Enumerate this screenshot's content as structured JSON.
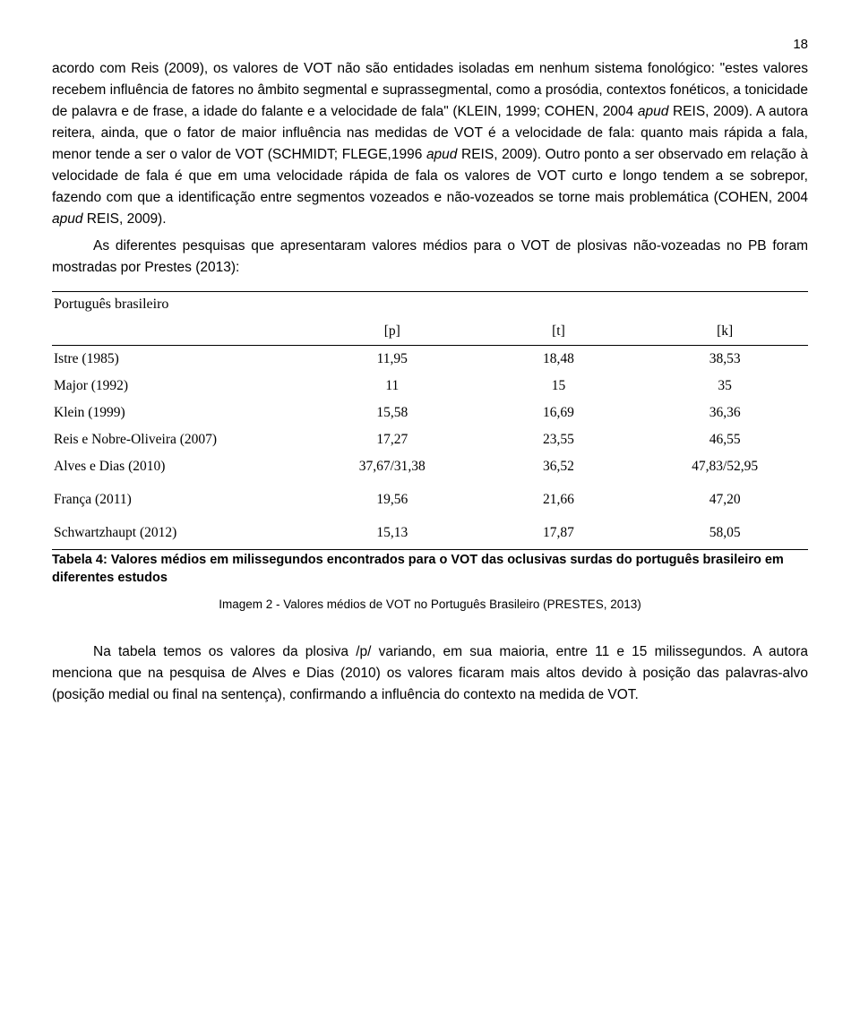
{
  "page_number": "18",
  "para1_a": "acordo com Reis (2009), os valores de VOT não são entidades isoladas em nenhum sistema fonológico: \"estes valores recebem influência de fatores no âmbito segmental e suprassegmental, como a prosódia, contextos fonéticos, a tonicidade de palavra e de frase, a idade do falante e a velocidade de fala\" (KLEIN, 1999; COHEN, 2004 ",
  "para1_apud1": "apud",
  "para1_b": " REIS, 2009). A autora reitera, ainda, que o fator de maior influência nas medidas de VOT é a velocidade de fala: quanto mais rápida a fala, menor tende a ser o valor de VOT (SCHMIDT; FLEGE,1996 ",
  "para1_apud2": "apud",
  "para1_c": " REIS, 2009). Outro ponto a ser observado em relação à velocidade de fala é que em uma velocidade rápida de fala os valores de VOT curto e longo tendem a se sobrepor, fazendo com que a identificação entre segmentos vozeados e não-vozeados se torne mais problemática (COHEN, 2004 ",
  "para1_apud3": "apud",
  "para1_d": " REIS, 2009).",
  "para2": "As diferentes pesquisas que apresentaram valores médios para o VOT de plosivas não-vozeadas no PB foram mostradas por Prestes (2013):",
  "table": {
    "lang_header": "Português brasileiro",
    "columns": [
      "[p]",
      "[t]",
      "[k]"
    ],
    "rows": [
      {
        "label": "Istre (1985)",
        "values": [
          "11,95",
          "18,48",
          "38,53"
        ]
      },
      {
        "label": "Major (1992)",
        "values": [
          "11",
          "15",
          "35"
        ]
      },
      {
        "label": "Klein (1999)",
        "values": [
          "15,58",
          "16,69",
          "36,36"
        ]
      },
      {
        "label": "Reis e Nobre-Oliveira (2007)",
        "values": [
          "17,27",
          "23,55",
          "46,55"
        ]
      },
      {
        "label": "Alves e Dias (2010)",
        "values": [
          "37,67/31,38",
          "36,52",
          "47,83/52,95"
        ]
      },
      {
        "label": "França (2011)",
        "values": [
          "19,56",
          "21,66",
          "47,20"
        ],
        "gap": true
      },
      {
        "label": "Schwartzhaupt (2012)",
        "values": [
          "15,13",
          "17,87",
          "58,05"
        ],
        "gap": true
      }
    ],
    "caption": "Tabela 4: Valores médios em milissegundos encontrados para o VOT das oclusivas surdas do português brasileiro em diferentes estudos",
    "col_widths": [
      "34%",
      "22%",
      "22%",
      "22%"
    ]
  },
  "img_caption": "Imagem 2 - Valores médios de VOT no Português Brasileiro (PRESTES, 2013)",
  "para3": "Na tabela temos os valores da plosiva /p/ variando, em sua maioria, entre 11 e 15 milissegundos. A autora menciona que na pesquisa de Alves e Dias (2010) os valores ficaram mais altos devido à posição das palavras-alvo (posição medial ou final na sentença), confirmando a influência do contexto na medida de VOT."
}
